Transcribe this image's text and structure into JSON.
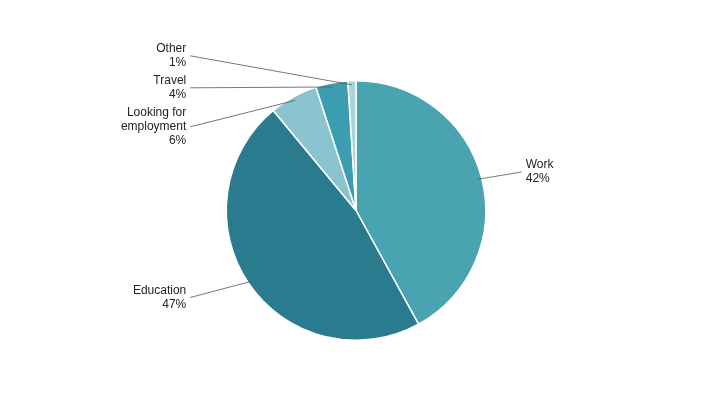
{
  "chart_data": {
    "type": "pie",
    "categories": [
      "Work",
      "Education",
      "Looking for\nemployment",
      "Travel",
      "Other"
    ],
    "values": [
      42,
      47,
      6,
      4,
      1
    ],
    "value_labels": [
      "42%",
      "47%",
      "6%",
      "4%",
      "1%"
    ],
    "colors": [
      "#4aa3b0",
      "#2b7b8e",
      "#8ac4ce",
      "#3d9db0",
      "#a8d5db"
    ],
    "data_labels": true
  }
}
